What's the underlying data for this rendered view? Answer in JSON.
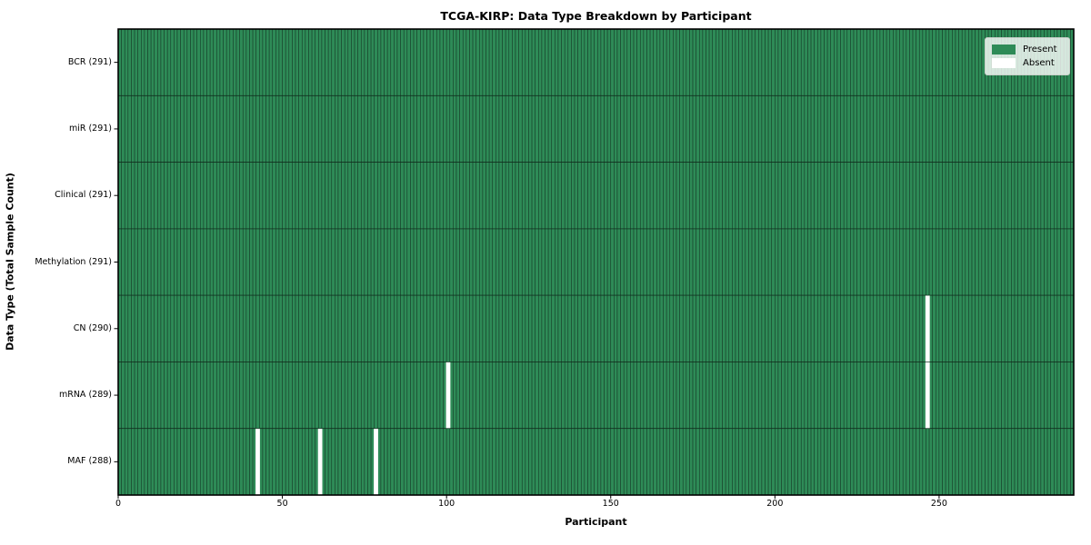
{
  "chart_data": {
    "type": "heatmap",
    "title": "TCGA-KIRP: Data Type Breakdown by Participant",
    "xlabel": "Participant",
    "ylabel": "Data Type (Total Sample Count)",
    "n_participants": 291,
    "xlim": [
      0,
      291
    ],
    "x_ticks": [
      0,
      50,
      100,
      150,
      200,
      250
    ],
    "rows": [
      {
        "label": "BCR (291)",
        "data_type": "BCR",
        "present_count": 291,
        "absent_participants": []
      },
      {
        "label": "miR (291)",
        "data_type": "miR",
        "present_count": 291,
        "absent_participants": []
      },
      {
        "label": "Clinical (291)",
        "data_type": "Clinical",
        "present_count": 291,
        "absent_participants": []
      },
      {
        "label": "Methylation (291)",
        "data_type": "Methylation",
        "present_count": 291,
        "absent_participants": []
      },
      {
        "label": "CN (290)",
        "data_type": "CN",
        "present_count": 290,
        "absent_participants": [
          246
        ]
      },
      {
        "label": "mRNA (289)",
        "data_type": "mRNA",
        "present_count": 289,
        "absent_participants": [
          100,
          246
        ]
      },
      {
        "label": "MAF (288)",
        "data_type": "MAF",
        "present_count": 288,
        "absent_participants": [
          42,
          61,
          78
        ]
      }
    ],
    "legend": [
      {
        "label": "Present",
        "color": "#2e8b57"
      },
      {
        "label": "Absent",
        "color": "#ffffff"
      }
    ],
    "legend_position": "upper-right",
    "colors": {
      "present": "#2e8b57",
      "absent": "#ffffff",
      "cell_border": "#112e1e",
      "spine": "#000000"
    },
    "grid": "cell-borders"
  }
}
